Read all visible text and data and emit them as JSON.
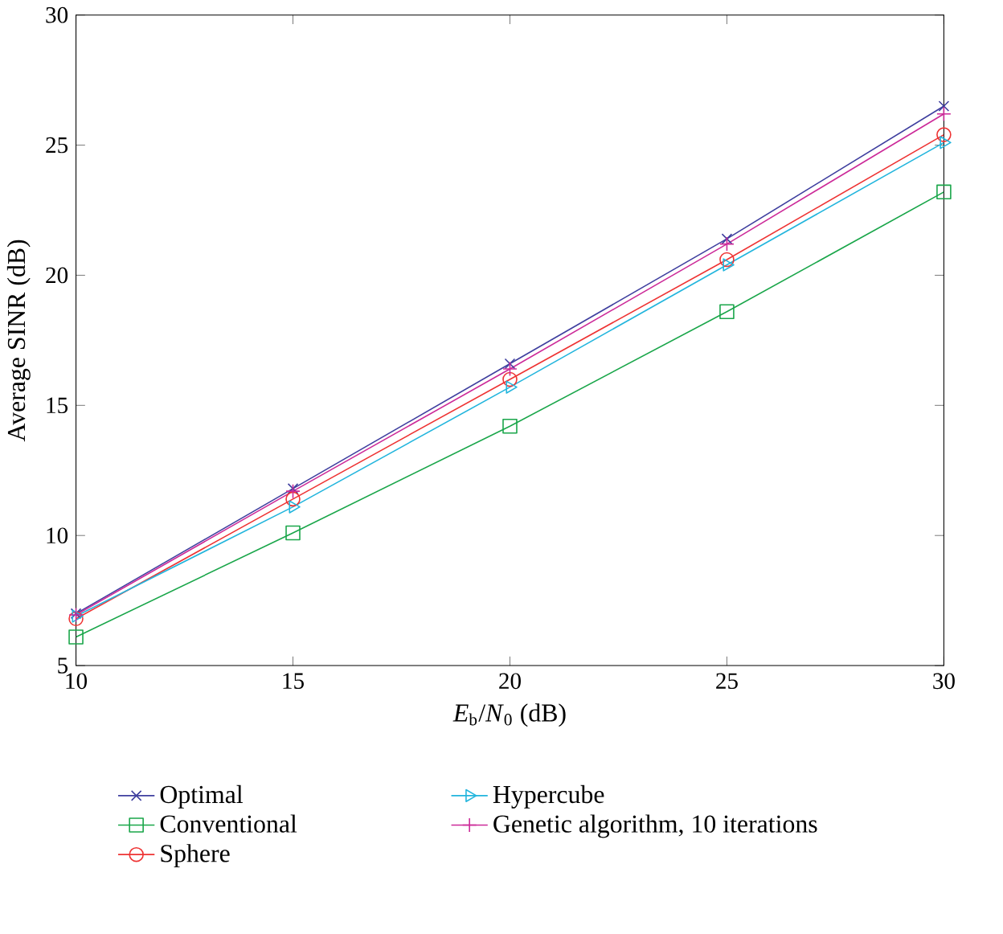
{
  "chart_data": {
    "type": "line",
    "xlabel": "*E*$_{b}$/*N*$_{0}$ (dB)",
    "ylabel": "Average SINR (dB)",
    "x": [
      10,
      15,
      20,
      25,
      30
    ],
    "series": [
      {
        "name": "Optimal",
        "color": "#3f3f9f",
        "marker": "x",
        "values": [
          7.0,
          11.8,
          16.6,
          21.4,
          26.5
        ]
      },
      {
        "name": "Conventional",
        "color": "#1aa64a",
        "marker": "square",
        "values": [
          6.1,
          10.1,
          14.2,
          18.6,
          23.2
        ]
      },
      {
        "name": "Sphere",
        "color": "#ee3333",
        "marker": "circle",
        "values": [
          6.8,
          11.4,
          16.0,
          20.6,
          25.4
        ]
      },
      {
        "name": "Hypercube",
        "color": "#22b5dd",
        "marker": "triangle",
        "values": [
          6.9,
          11.1,
          15.7,
          20.4,
          25.1
        ]
      },
      {
        "name": "Genetic algorithm, 10 iterations",
        "color": "#cc2a99",
        "marker": "plus",
        "values": [
          6.95,
          11.7,
          16.4,
          21.2,
          26.2
        ]
      }
    ],
    "xlim": [
      10,
      30
    ],
    "xticks": [
      10,
      15,
      20,
      25,
      30
    ],
    "ylim": [
      5,
      30
    ],
    "yticks": [
      5,
      10,
      15,
      20,
      25,
      30
    ],
    "grid": false,
    "legend": "bottom",
    "line_style": "solid"
  }
}
